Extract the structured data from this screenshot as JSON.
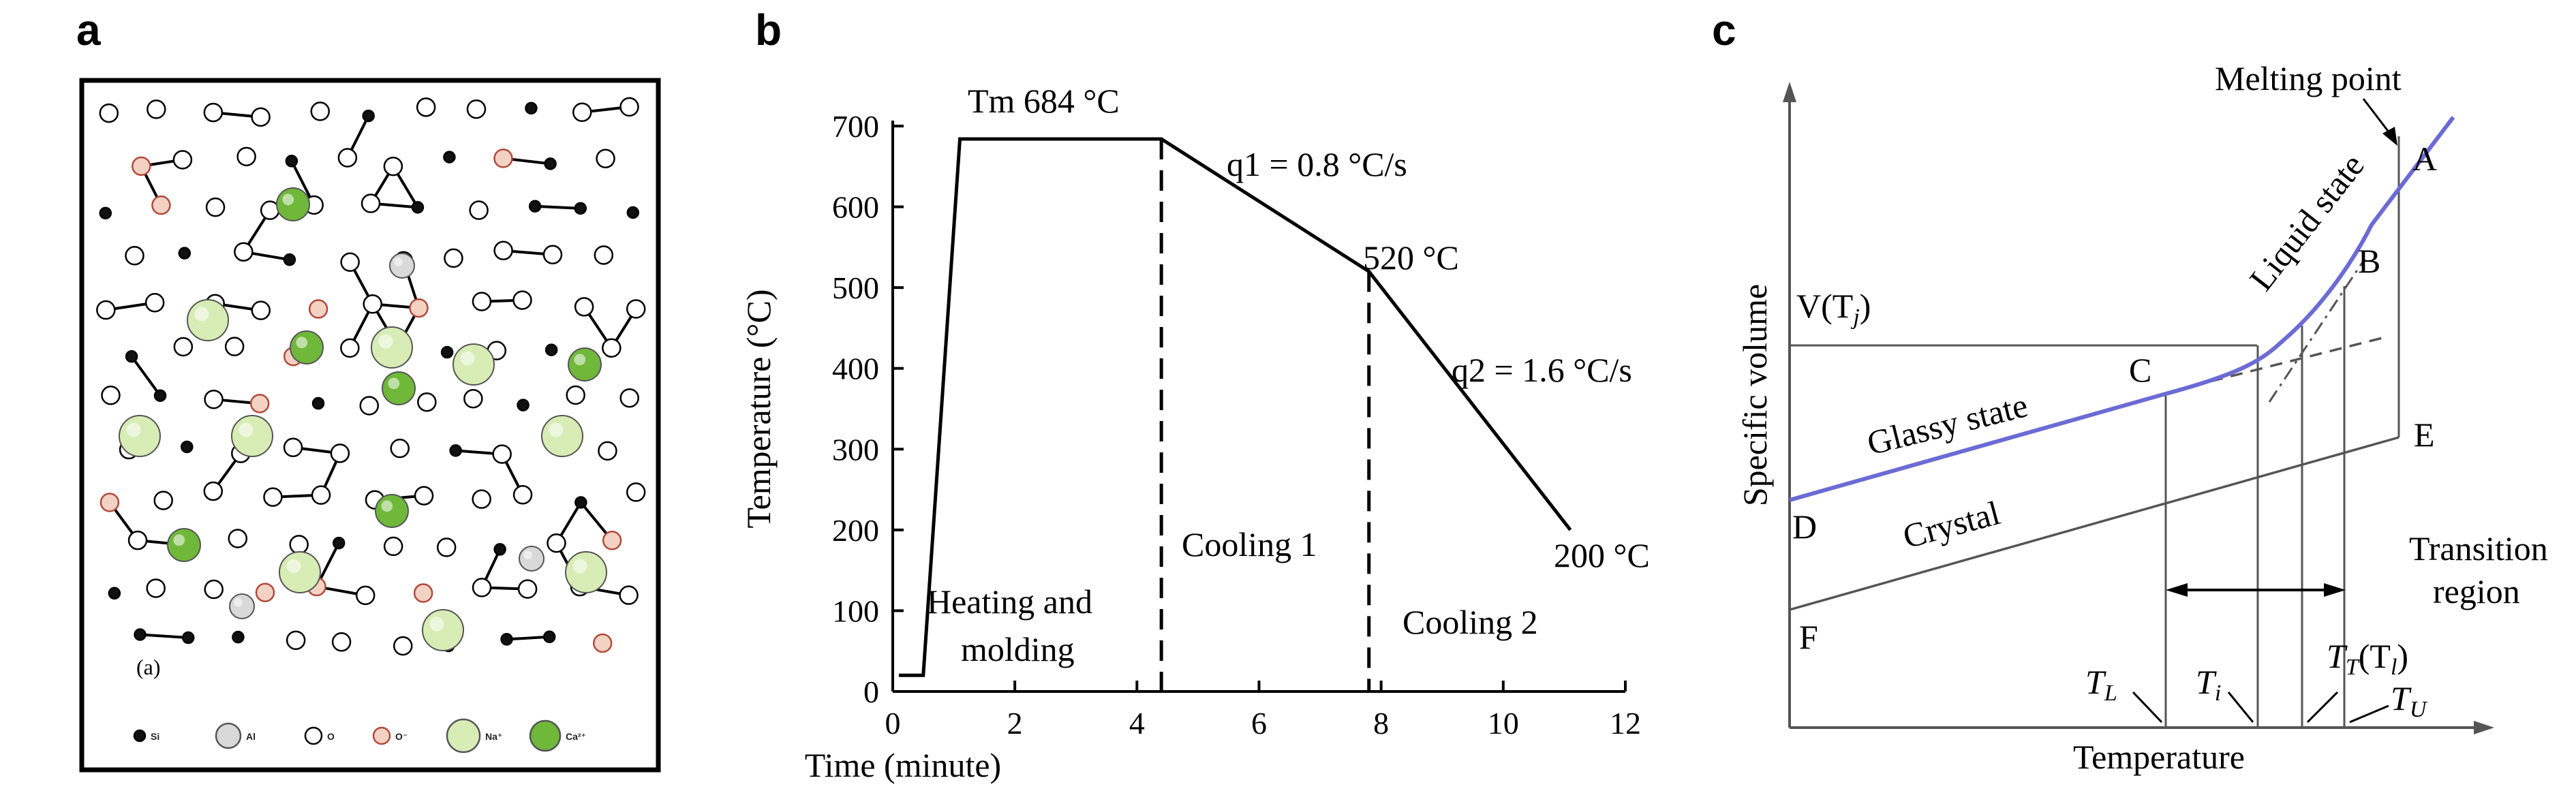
{
  "panels": {
    "a": {
      "letter": "a",
      "sublabel": "(a)",
      "legend": [
        {
          "symbol": "si-atom",
          "label": "Si"
        },
        {
          "symbol": "al-atom",
          "label": "Al"
        },
        {
          "symbol": "o-atom",
          "label": "O"
        },
        {
          "symbol": "o-minus-atom",
          "label": "O⁻"
        },
        {
          "symbol": "na-ion",
          "label": "Na⁺"
        },
        {
          "symbol": "ca-ion",
          "label": "Ca²⁺"
        }
      ],
      "colors": {
        "si": "#111111",
        "al": "#d9d9d9",
        "o": "#ffffff",
        "o_minus": "#f3d2c4",
        "na": "#d8edb6",
        "ca": "#6fb83a"
      }
    },
    "b": {
      "letter": "b",
      "annotations": {
        "tm": "Tm 684 °C",
        "q1": "q1 = 0.8 °C/s",
        "t520": "520 °C",
        "q2": "q2 = 1.6 °C/s",
        "t200": "200 °C",
        "heating_1": "Heating and",
        "heating_2": "molding",
        "cooling1": "Cooling 1",
        "cooling2": "Cooling 2"
      }
    },
    "c": {
      "letter": "c",
      "labels": {
        "ylabel": "Specific volume",
        "xlabel": "Temperature",
        "melting_point": "Melting point",
        "liquid_state": "Liquid state",
        "glassy_state": "Glassy state",
        "crystal": "Crystal",
        "transition_1": "Transition",
        "transition_2": "region",
        "v_tj": "V(T",
        "v_tj_sub": "j",
        "pt_A": "A",
        "pt_B": "B",
        "pt_C": "C",
        "pt_D": "D",
        "pt_E": "E",
        "pt_F": "F",
        "TL": "T",
        "TL_sub": "L",
        "Ti": "T",
        "Ti_sub": "i",
        "TT": "T",
        "TT_sub": "T",
        "TT_paren": "(T",
        "TT_paren_sub": "l",
        "TU": "T",
        "TU_sub": "U"
      },
      "colors": {
        "liquid_glass_curve": "#6b6bd6",
        "line": "#555555"
      }
    }
  },
  "chart_data": {
    "type": "line",
    "xlabel": "Time (minute)",
    "ylabel": "Temperature (°C)",
    "xlim": [
      0,
      12
    ],
    "ylim": [
      0,
      700
    ],
    "xticks": [
      0,
      2,
      4,
      6,
      8,
      10,
      12
    ],
    "yticks": [
      0,
      100,
      200,
      300,
      400,
      500,
      600,
      700
    ],
    "series": [
      {
        "x": [
          0.1,
          0.5,
          1.1,
          4.4,
          7.8,
          11.1
        ],
        "y": [
          20,
          20,
          684,
          684,
          520,
          200
        ]
      }
    ],
    "vlines": [
      4.4,
      7.8
    ]
  }
}
